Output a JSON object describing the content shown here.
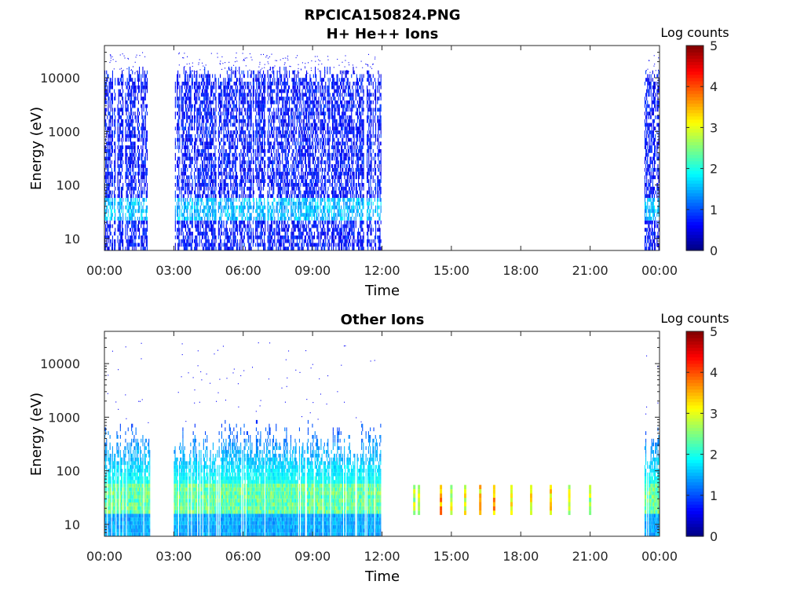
{
  "figure": {
    "title_line1": "RPCICA150824.PNG",
    "title_line2": "H+ He++ Ions",
    "bottom_title": "Other Ions"
  },
  "chart_data": [
    {
      "type": "heatmap",
      "title": "H+ He++ Ions",
      "xlabel": "Time",
      "ylabel": "Energy (eV)",
      "xlim": [
        "00:00",
        "24:00"
      ],
      "xticks": [
        "00:00",
        "03:00",
        "06:00",
        "09:00",
        "12:00",
        "15:00",
        "18:00",
        "21:00",
        "00:00"
      ],
      "ylim": [
        6,
        40000
      ],
      "yscale": "log",
      "yticks": [
        10,
        100,
        1000,
        10000
      ],
      "yticklabels": [
        "10",
        "100",
        "1000",
        "10000"
      ],
      "colorbar": {
        "label": "Log counts",
        "range": [
          0,
          5
        ],
        "ticks": [
          0,
          1,
          2,
          3,
          4,
          5
        ],
        "colormap": "jet"
      },
      "data_intervals_hours": [
        [
          0.0,
          1.85
        ],
        [
          3.05,
          11.95
        ],
        [
          23.35,
          23.95
        ]
      ],
      "energy_band_eV": [
        6,
        15000
      ],
      "dominant_log_counts": 1.0,
      "peak_band_eV": [
        20,
        50
      ],
      "peak_band_log_counts": 1.8,
      "scattered_high_energy_max_eV": 30000
    },
    {
      "type": "heatmap",
      "title": "Other Ions",
      "xlabel": "Time",
      "ylabel": "Energy (eV)",
      "xlim": [
        "00:00",
        "24:00"
      ],
      "xticks": [
        "00:00",
        "03:00",
        "06:00",
        "09:00",
        "12:00",
        "15:00",
        "18:00",
        "21:00",
        "00:00"
      ],
      "ylim": [
        6,
        40000
      ],
      "yscale": "log",
      "yticks": [
        10,
        100,
        1000,
        10000
      ],
      "yticklabels": [
        "10",
        "100",
        "1000",
        "10000"
      ],
      "colorbar": {
        "label": "Log counts",
        "range": [
          0,
          5
        ],
        "ticks": [
          0,
          1,
          2,
          3,
          4,
          5
        ],
        "colormap": "jet"
      },
      "data_intervals_hours": [
        [
          0.0,
          1.95
        ],
        [
          3.0,
          11.95
        ],
        [
          23.35,
          23.95
        ]
      ],
      "energy_band_eV": [
        6,
        800
      ],
      "core_band_eV": [
        15,
        50
      ],
      "core_band_log_counts": 2.8,
      "burst_hours": [
        13.4,
        13.6,
        14.55,
        15.0,
        15.6,
        16.25,
        16.85,
        17.6,
        18.45,
        19.3,
        20.1,
        21.0
      ],
      "burst_log_counts": [
        2.8,
        3.0,
        3.7,
        3.0,
        3.0,
        3.3,
        3.5,
        3.2,
        3.1,
        3.3,
        3.0,
        2.8
      ],
      "burst_energy_band_eV": [
        15,
        50
      ]
    }
  ]
}
